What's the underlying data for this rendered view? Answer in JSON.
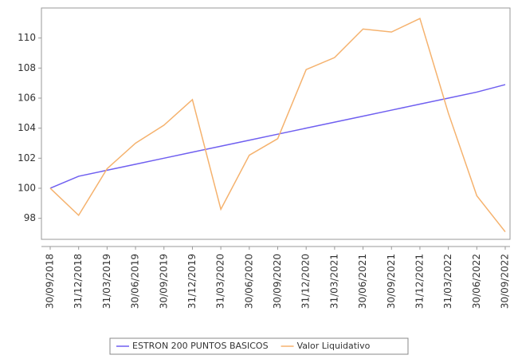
{
  "chart_data": {
    "type": "line",
    "categories": [
      "30/09/2018",
      "31/12/2018",
      "31/03/2019",
      "30/06/2019",
      "30/09/2019",
      "31/12/2019",
      "31/03/2020",
      "30/06/2020",
      "30/09/2020",
      "31/12/2020",
      "31/03/2021",
      "30/06/2021",
      "30/09/2021",
      "31/12/2021",
      "31/03/2022",
      "30/06/2022",
      "30/09/2022"
    ],
    "series": [
      {
        "name": "ESTRON 200 PUNTOS BASICOS",
        "color": "#6f5ff0",
        "values": [
          100,
          100.8,
          101.2,
          101.6,
          102.0,
          102.4,
          102.8,
          103.2,
          103.6,
          104.0,
          104.4,
          104.8,
          105.2,
          105.6,
          106.0,
          106.4,
          106.9
        ]
      },
      {
        "name": "Valor Liquidativo",
        "color": "#f5b26e",
        "values": [
          100,
          98.2,
          101.3,
          103.0,
          104.2,
          105.9,
          98.6,
          102.2,
          103.3,
          107.9,
          108.7,
          110.6,
          110.4,
          111.3,
          105.0,
          99.5,
          97.1
        ]
      }
    ],
    "ylim": [
      96.6,
      112
    ],
    "yticks": [
      98,
      100,
      102,
      104,
      106,
      108,
      110
    ],
    "grid": false,
    "legend": "bottom"
  }
}
